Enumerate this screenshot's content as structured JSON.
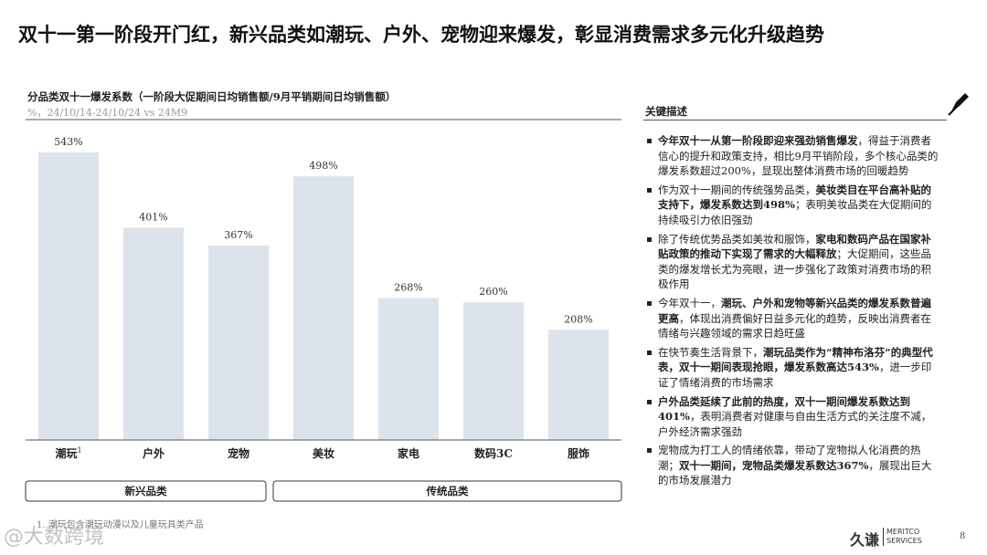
{
  "header": {
    "title": "双十一第一阶段开门红，新兴品类如潮玩、户外、宠物迎来爆发，彰显消费需求多元化升级趋势"
  },
  "chart_data": {
    "type": "bar",
    "title": "分品类双十一爆发系数（一阶段大促期间日均销售额/9月平销期间日均销售额）",
    "subtitle": "%，24/10/14-24/10/24 vs 24M9",
    "categories": [
      "潮玩",
      "户外",
      "宠物",
      "美妆",
      "家电",
      "数码3C",
      "服饰"
    ],
    "category_note": "1",
    "values": [
      543,
      401,
      367,
      498,
      268,
      260,
      208
    ],
    "value_labels": [
      "543%",
      "401%",
      "367%",
      "498%",
      "268%",
      "260%",
      "208%"
    ],
    "color": "#dde3ea",
    "groups": [
      {
        "label": "新兴品类",
        "size": 3
      },
      {
        "label": "传统品类",
        "size": 4
      }
    ]
  },
  "footnote": "1.  潮玩包含潮玩动漫以及儿童玩具类产品",
  "panel": {
    "title": "关键描述",
    "bullets": [
      [
        {
          "text": "今年双十一从第一阶段即迎来强劲销售爆发",
          "bold": true
        },
        {
          "text": "，得益于消费者信心的提升和政策支持，相比9月平销阶段，多个核心品类的爆发系数超过200%，显现出整体消费市场的回暖趋势",
          "bold": false
        }
      ],
      [
        {
          "text": "作为双十一期间的传统强势品类，",
          "bold": false
        },
        {
          "text": "美妆类目在平台高补贴的支持下，爆发系数达到498%",
          "bold": true
        },
        {
          "text": "；表明美妆品类在大促期间的持续吸引力依旧强劲",
          "bold": false
        }
      ],
      [
        {
          "text": "除了传统优势品类如美妆和服饰，",
          "bold": false
        },
        {
          "text": "家电和数码产品在国家补贴政策的推动下实现了需求的大幅释放",
          "bold": true
        },
        {
          "text": "；大促期间，这些品类的爆发增长尤为亮眼，进一步强化了政策对消费市场的积极作用",
          "bold": false
        }
      ],
      [
        {
          "text": "今年双十一，",
          "bold": false
        },
        {
          "text": "潮玩、户外和宠物等新兴品类的爆发系数普遍更高",
          "bold": true
        },
        {
          "text": "，体现出消费偏好日益多元化的趋势，反映出消费者在情绪与兴趣领域的需求日趋旺盛",
          "bold": false
        }
      ],
      [
        {
          "text": "在快节奏生活背景下，",
          "bold": false
        },
        {
          "text": "潮玩品类作为“精神布洛芬”的典型代表，双十一期间表现抢眼，爆发系数高达543%",
          "bold": true
        },
        {
          "text": "，进一步印证了情绪消费的市场需求",
          "bold": false
        }
      ],
      [
        {
          "text": "户外品类延续了此前的热度，双十一期间爆发系数达到401%",
          "bold": true
        },
        {
          "text": "，表明消费者对健康与自由生活方式的关注度不减，户外经济需求强劲",
          "bold": false
        }
      ],
      [
        {
          "text": "宠物成为打工人的情绪依靠，带动了宠物拟人化消费的热潮；",
          "bold": false
        },
        {
          "text": "双十一期间，宠物品类爆发系数达367%",
          "bold": true
        },
        {
          "text": "，展现出巨大的市场发展潜力",
          "bold": false
        }
      ]
    ]
  },
  "footer": {
    "logo": "久谦",
    "logo_sub1": "MERITCO",
    "logo_sub2": "SERVICES",
    "page": "8",
    "watermark": "@大数跨境"
  }
}
